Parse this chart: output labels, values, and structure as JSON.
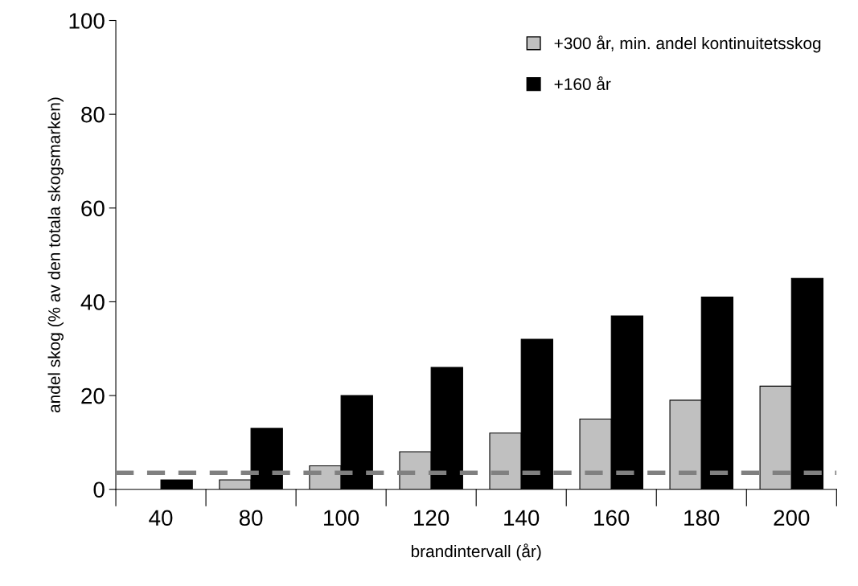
{
  "chart_data": {
    "type": "bar",
    "xlabel": "brandintervall (år)",
    "ylabel": "andel skog (% av den totala skogsmarken)",
    "categories": [
      "40",
      "80",
      "100",
      "120",
      "140",
      "160",
      "180",
      "200"
    ],
    "series": [
      {
        "name": "+300 år, min. andel kontinuitetsskog",
        "color": "#c0c0c0",
        "values": [
          0,
          2,
          5,
          8,
          12,
          15,
          19,
          22
        ]
      },
      {
        "name": "+160 år",
        "color": "#000000",
        "values": [
          2,
          13,
          20,
          26,
          32,
          37,
          41,
          45
        ]
      }
    ],
    "ylim": [
      0,
      100
    ],
    "yticks": [
      0,
      20,
      40,
      60,
      80,
      100
    ],
    "grid": false,
    "legend": "top right",
    "ref_lines": [
      {
        "axis": "y",
        "value": 3.5,
        "color": "#808080",
        "line_style": "dashed"
      }
    ]
  }
}
